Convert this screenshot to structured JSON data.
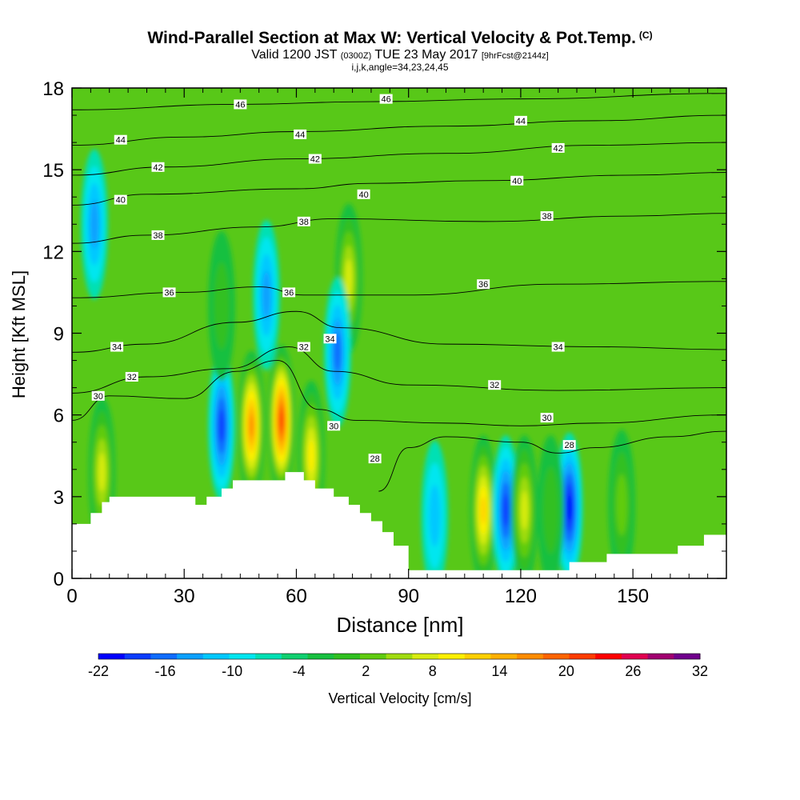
{
  "title": "Wind-Parallel Section at Max W: Vertical Velocity & Pot.Temp.",
  "copyright": "(C)",
  "subtitle_main": "Valid 1200 JST",
  "subtitle_z": "(0300Z)",
  "subtitle_date": "TUE 23 May 2017",
  "subtitle_fcst": "[9hrFcst@2144z]",
  "subtitle2": "i,j,k,angle=34,23,24,45",
  "chart_data": {
    "type": "heatmap",
    "title": "Wind-Parallel Section at Max W: Vertical Velocity & Pot.Temp.",
    "xlabel": "Distance [nm]",
    "ylabel": "Height [Kft MSL]",
    "xlim": [
      0,
      175
    ],
    "ylim": [
      0,
      18
    ],
    "x_ticks": [
      "0",
      "30",
      "60",
      "90",
      "120",
      "150"
    ],
    "x_tick_values": [
      0,
      30,
      60,
      90,
      120,
      150
    ],
    "y_ticks": [
      "0",
      "3",
      "6",
      "9",
      "12",
      "15",
      "18"
    ],
    "y_tick_values": [
      0,
      3,
      6,
      9,
      12,
      15,
      18
    ],
    "colorbar": {
      "label": "Vertical Velocity [cm/s]",
      "min": -22,
      "max": 32,
      "step": 3,
      "tick_labels": [
        "-22",
        "-16",
        "-10",
        "-4",
        "2",
        "8",
        "14",
        "20",
        "26",
        "32"
      ],
      "colors": [
        "#0000ff",
        "#0a3cff",
        "#0f6cff",
        "#0aa0ff",
        "#00c8ff",
        "#00e6f0",
        "#00e0b4",
        "#10d070",
        "#18c040",
        "#30c020",
        "#60cc10",
        "#a0dc10",
        "#d8ec10",
        "#fff000",
        "#ffd000",
        "#ffb000",
        "#ff8c00",
        "#ff6400",
        "#ff3c00",
        "#ff0000",
        "#e00050",
        "#a00070",
        "#70008c"
      ]
    },
    "terrain_height_kft": [
      [
        0,
        2.0
      ],
      [
        5,
        2.0
      ],
      [
        5,
        2.4
      ],
      [
        8,
        2.4
      ],
      [
        8,
        2.8
      ],
      [
        10,
        2.8
      ],
      [
        10,
        3.0
      ],
      [
        33,
        3.0
      ],
      [
        33,
        2.7
      ],
      [
        36,
        2.7
      ],
      [
        36,
        3.0
      ],
      [
        40,
        3.0
      ],
      [
        40,
        3.3
      ],
      [
        43,
        3.3
      ],
      [
        43,
        3.6
      ],
      [
        57,
        3.6
      ],
      [
        57,
        3.9
      ],
      [
        62,
        3.9
      ],
      [
        62,
        3.6
      ],
      [
        65,
        3.6
      ],
      [
        65,
        3.3
      ],
      [
        70,
        3.3
      ],
      [
        70,
        3.0
      ],
      [
        74,
        3.0
      ],
      [
        74,
        2.7
      ],
      [
        77,
        2.7
      ],
      [
        77,
        2.4
      ],
      [
        80,
        2.4
      ],
      [
        80,
        2.1
      ],
      [
        83,
        2.1
      ],
      [
        83,
        1.7
      ],
      [
        86,
        1.7
      ],
      [
        86,
        1.2
      ],
      [
        90,
        1.2
      ],
      [
        90,
        0.3
      ],
      [
        133,
        0.3
      ],
      [
        133,
        0.6
      ],
      [
        143,
        0.6
      ],
      [
        143,
        0.9
      ],
      [
        162,
        0.9
      ],
      [
        162,
        1.2
      ],
      [
        169,
        1.2
      ],
      [
        169,
        1.6
      ],
      [
        175,
        1.6
      ]
    ],
    "w_features": [
      {
        "x": 8,
        "y": 3.9,
        "w": 16
      },
      {
        "x": 40,
        "y": 5.6,
        "w": -18
      },
      {
        "x": 48,
        "y": 5.6,
        "w": 26
      },
      {
        "x": 56,
        "y": 5.8,
        "w": 32
      },
      {
        "x": 64,
        "y": 4.5,
        "w": 18
      },
      {
        "x": 74,
        "y": 11.0,
        "w": 14
      },
      {
        "x": 71,
        "y": 8.3,
        "w": -14
      },
      {
        "x": 52,
        "y": 10.4,
        "w": -12
      },
      {
        "x": 40,
        "y": 10.0,
        "w": 6
      },
      {
        "x": 6,
        "y": 13.0,
        "w": -12
      },
      {
        "x": 110,
        "y": 2.5,
        "w": 20
      },
      {
        "x": 116,
        "y": 2.5,
        "w": -18
      },
      {
        "x": 121,
        "y": 2.5,
        "w": 16
      },
      {
        "x": 133,
        "y": 2.6,
        "w": -22
      },
      {
        "x": 97,
        "y": 2.3,
        "w": -10
      },
      {
        "x": 147,
        "y": 2.7,
        "w": 10
      },
      {
        "x": 128,
        "y": 2.5,
        "w": 6
      }
    ],
    "pot_temp_contours": [
      {
        "label": "28",
        "points": [
          [
            82,
            3.2
          ],
          [
            90,
            4.8
          ],
          [
            100,
            5.2
          ],
          [
            120,
            5.0
          ],
          [
            130,
            4.6
          ],
          [
            140,
            4.8
          ],
          [
            160,
            5.2
          ],
          [
            175,
            5.4
          ]
        ]
      },
      {
        "label": "30",
        "points": [
          [
            0,
            5.8
          ],
          [
            10,
            6.7
          ],
          [
            30,
            6.6
          ],
          [
            44,
            7.6
          ],
          [
            55,
            8.0
          ],
          [
            66,
            6.2
          ],
          [
            76,
            5.8
          ],
          [
            100,
            5.7
          ],
          [
            120,
            5.6
          ],
          [
            140,
            5.7
          ],
          [
            175,
            6.0
          ]
        ]
      },
      {
        "label": "32",
        "points": [
          [
            0,
            6.8
          ],
          [
            20,
            7.4
          ],
          [
            42,
            7.7
          ],
          [
            58,
            8.5
          ],
          [
            70,
            7.6
          ],
          [
            90,
            7.1
          ],
          [
            130,
            6.9
          ],
          [
            175,
            7.0
          ]
        ]
      },
      {
        "label": "34",
        "points": [
          [
            0,
            8.3
          ],
          [
            20,
            8.6
          ],
          [
            44,
            9.4
          ],
          [
            60,
            9.8
          ],
          [
            72,
            9.2
          ],
          [
            100,
            8.6
          ],
          [
            140,
            8.5
          ],
          [
            175,
            8.4
          ]
        ]
      },
      {
        "label": "36",
        "points": [
          [
            0,
            10.3
          ],
          [
            30,
            10.5
          ],
          [
            50,
            10.7
          ],
          [
            62,
            10.4
          ],
          [
            90,
            10.4
          ],
          [
            130,
            10.8
          ],
          [
            175,
            10.9
          ]
        ]
      },
      {
        "label": "38",
        "points": [
          [
            0,
            12.3
          ],
          [
            20,
            12.6
          ],
          [
            50,
            12.9
          ],
          [
            70,
            13.2
          ],
          [
            110,
            13.1
          ],
          [
            150,
            13.3
          ],
          [
            175,
            13.4
          ]
        ]
      },
      {
        "label": "40",
        "points": [
          [
            0,
            13.7
          ],
          [
            20,
            14.1
          ],
          [
            60,
            14.3
          ],
          [
            80,
            14.5
          ],
          [
            110,
            14.6
          ],
          [
            150,
            14.8
          ],
          [
            175,
            14.9
          ]
        ]
      },
      {
        "label": "42",
        "points": [
          [
            0,
            14.8
          ],
          [
            25,
            15.1
          ],
          [
            60,
            15.4
          ],
          [
            100,
            15.6
          ],
          [
            140,
            15.9
          ],
          [
            175,
            16.0
          ]
        ]
      },
      {
        "label": "44",
        "points": [
          [
            0,
            15.9
          ],
          [
            30,
            16.2
          ],
          [
            60,
            16.4
          ],
          [
            100,
            16.6
          ],
          [
            140,
            16.8
          ],
          [
            175,
            17.0
          ]
        ]
      },
      {
        "label": "46",
        "points": [
          [
            0,
            17.2
          ],
          [
            45,
            17.4
          ],
          [
            80,
            17.5
          ],
          [
            120,
            17.6
          ],
          [
            175,
            17.8
          ]
        ]
      }
    ],
    "contour_labels": [
      {
        "label": "46",
        "x": 45,
        "y": 17.4
      },
      {
        "label": "46",
        "x": 84,
        "y": 17.6
      },
      {
        "label": "44",
        "x": 13,
        "y": 16.1
      },
      {
        "label": "44",
        "x": 61,
        "y": 16.3
      },
      {
        "label": "44",
        "x": 120,
        "y": 16.8
      },
      {
        "label": "42",
        "x": 23,
        "y": 15.1
      },
      {
        "label": "42",
        "x": 65,
        "y": 15.4
      },
      {
        "label": "42",
        "x": 130,
        "y": 15.8
      },
      {
        "label": "40",
        "x": 13,
        "y": 13.9
      },
      {
        "label": "40",
        "x": 78,
        "y": 14.1
      },
      {
        "label": "40",
        "x": 119,
        "y": 14.6
      },
      {
        "label": "38",
        "x": 23,
        "y": 12.6
      },
      {
        "label": "38",
        "x": 62,
        "y": 13.1
      },
      {
        "label": "38",
        "x": 127,
        "y": 13.3
      },
      {
        "label": "36",
        "x": 26,
        "y": 10.5
      },
      {
        "label": "36",
        "x": 58,
        "y": 10.5
      },
      {
        "label": "36",
        "x": 110,
        "y": 10.8
      },
      {
        "label": "34",
        "x": 12,
        "y": 8.5
      },
      {
        "label": "34",
        "x": 69,
        "y": 8.8
      },
      {
        "label": "34",
        "x": 130,
        "y": 8.5
      },
      {
        "label": "32",
        "x": 16,
        "y": 7.4
      },
      {
        "label": "32",
        "x": 62,
        "y": 8.5
      },
      {
        "label": "32",
        "x": 113,
        "y": 7.1
      },
      {
        "label": "30",
        "x": 7,
        "y": 6.7
      },
      {
        "label": "30",
        "x": 70,
        "y": 5.6
      },
      {
        "label": "30",
        "x": 127,
        "y": 5.9
      },
      {
        "label": "28",
        "x": 81,
        "y": 4.4
      },
      {
        "label": "28",
        "x": 133,
        "y": 4.9
      }
    ]
  }
}
